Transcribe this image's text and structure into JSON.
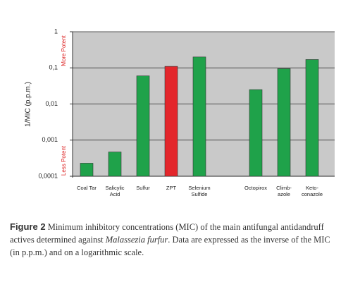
{
  "chart_data": {
    "type": "bar",
    "y_label": "1/MIC (p.p.m.)",
    "annotations": [
      "More Potent",
      "Less Potent"
    ],
    "categories": [
      "Coal Tar",
      "Salicylic\nAcid",
      "Sulfur",
      "ZPT",
      "Selenium\nSulfide",
      null,
      "Octopirox",
      "Climb-\nazole",
      "Keto-\nconazole"
    ],
    "values": [
      0.00023,
      0.00047,
      0.06,
      0.11,
      0.2,
      null,
      0.025,
      0.095,
      0.17
    ],
    "colors": [
      "#1fa24a",
      "#1fa24a",
      "#1fa24a",
      "#e3262b",
      "#1fa24a",
      null,
      "#1fa24a",
      "#1fa24a",
      "#1fa24a"
    ],
    "log_scale": true,
    "ylim": [
      0.0001,
      1
    ],
    "yticks": [
      {
        "value": 0.0001,
        "label": "0,0001"
      },
      {
        "value": 0.001,
        "label": "0,001"
      },
      {
        "value": 0.01,
        "label": "0,01"
      },
      {
        "value": 0.1,
        "label": "0,1"
      },
      1
    ],
    "grid": true
  },
  "caption": {
    "label": "Figure 2",
    "parts": [
      " Minimum inhibitory concentrations (MIC) of the main antifungal antidandruff actives determined against ",
      "Malassezia furfur",
      ". Data are expressed as the inverse of the MIC (in p.p.m.) and on a logarithmic scale."
    ]
  }
}
